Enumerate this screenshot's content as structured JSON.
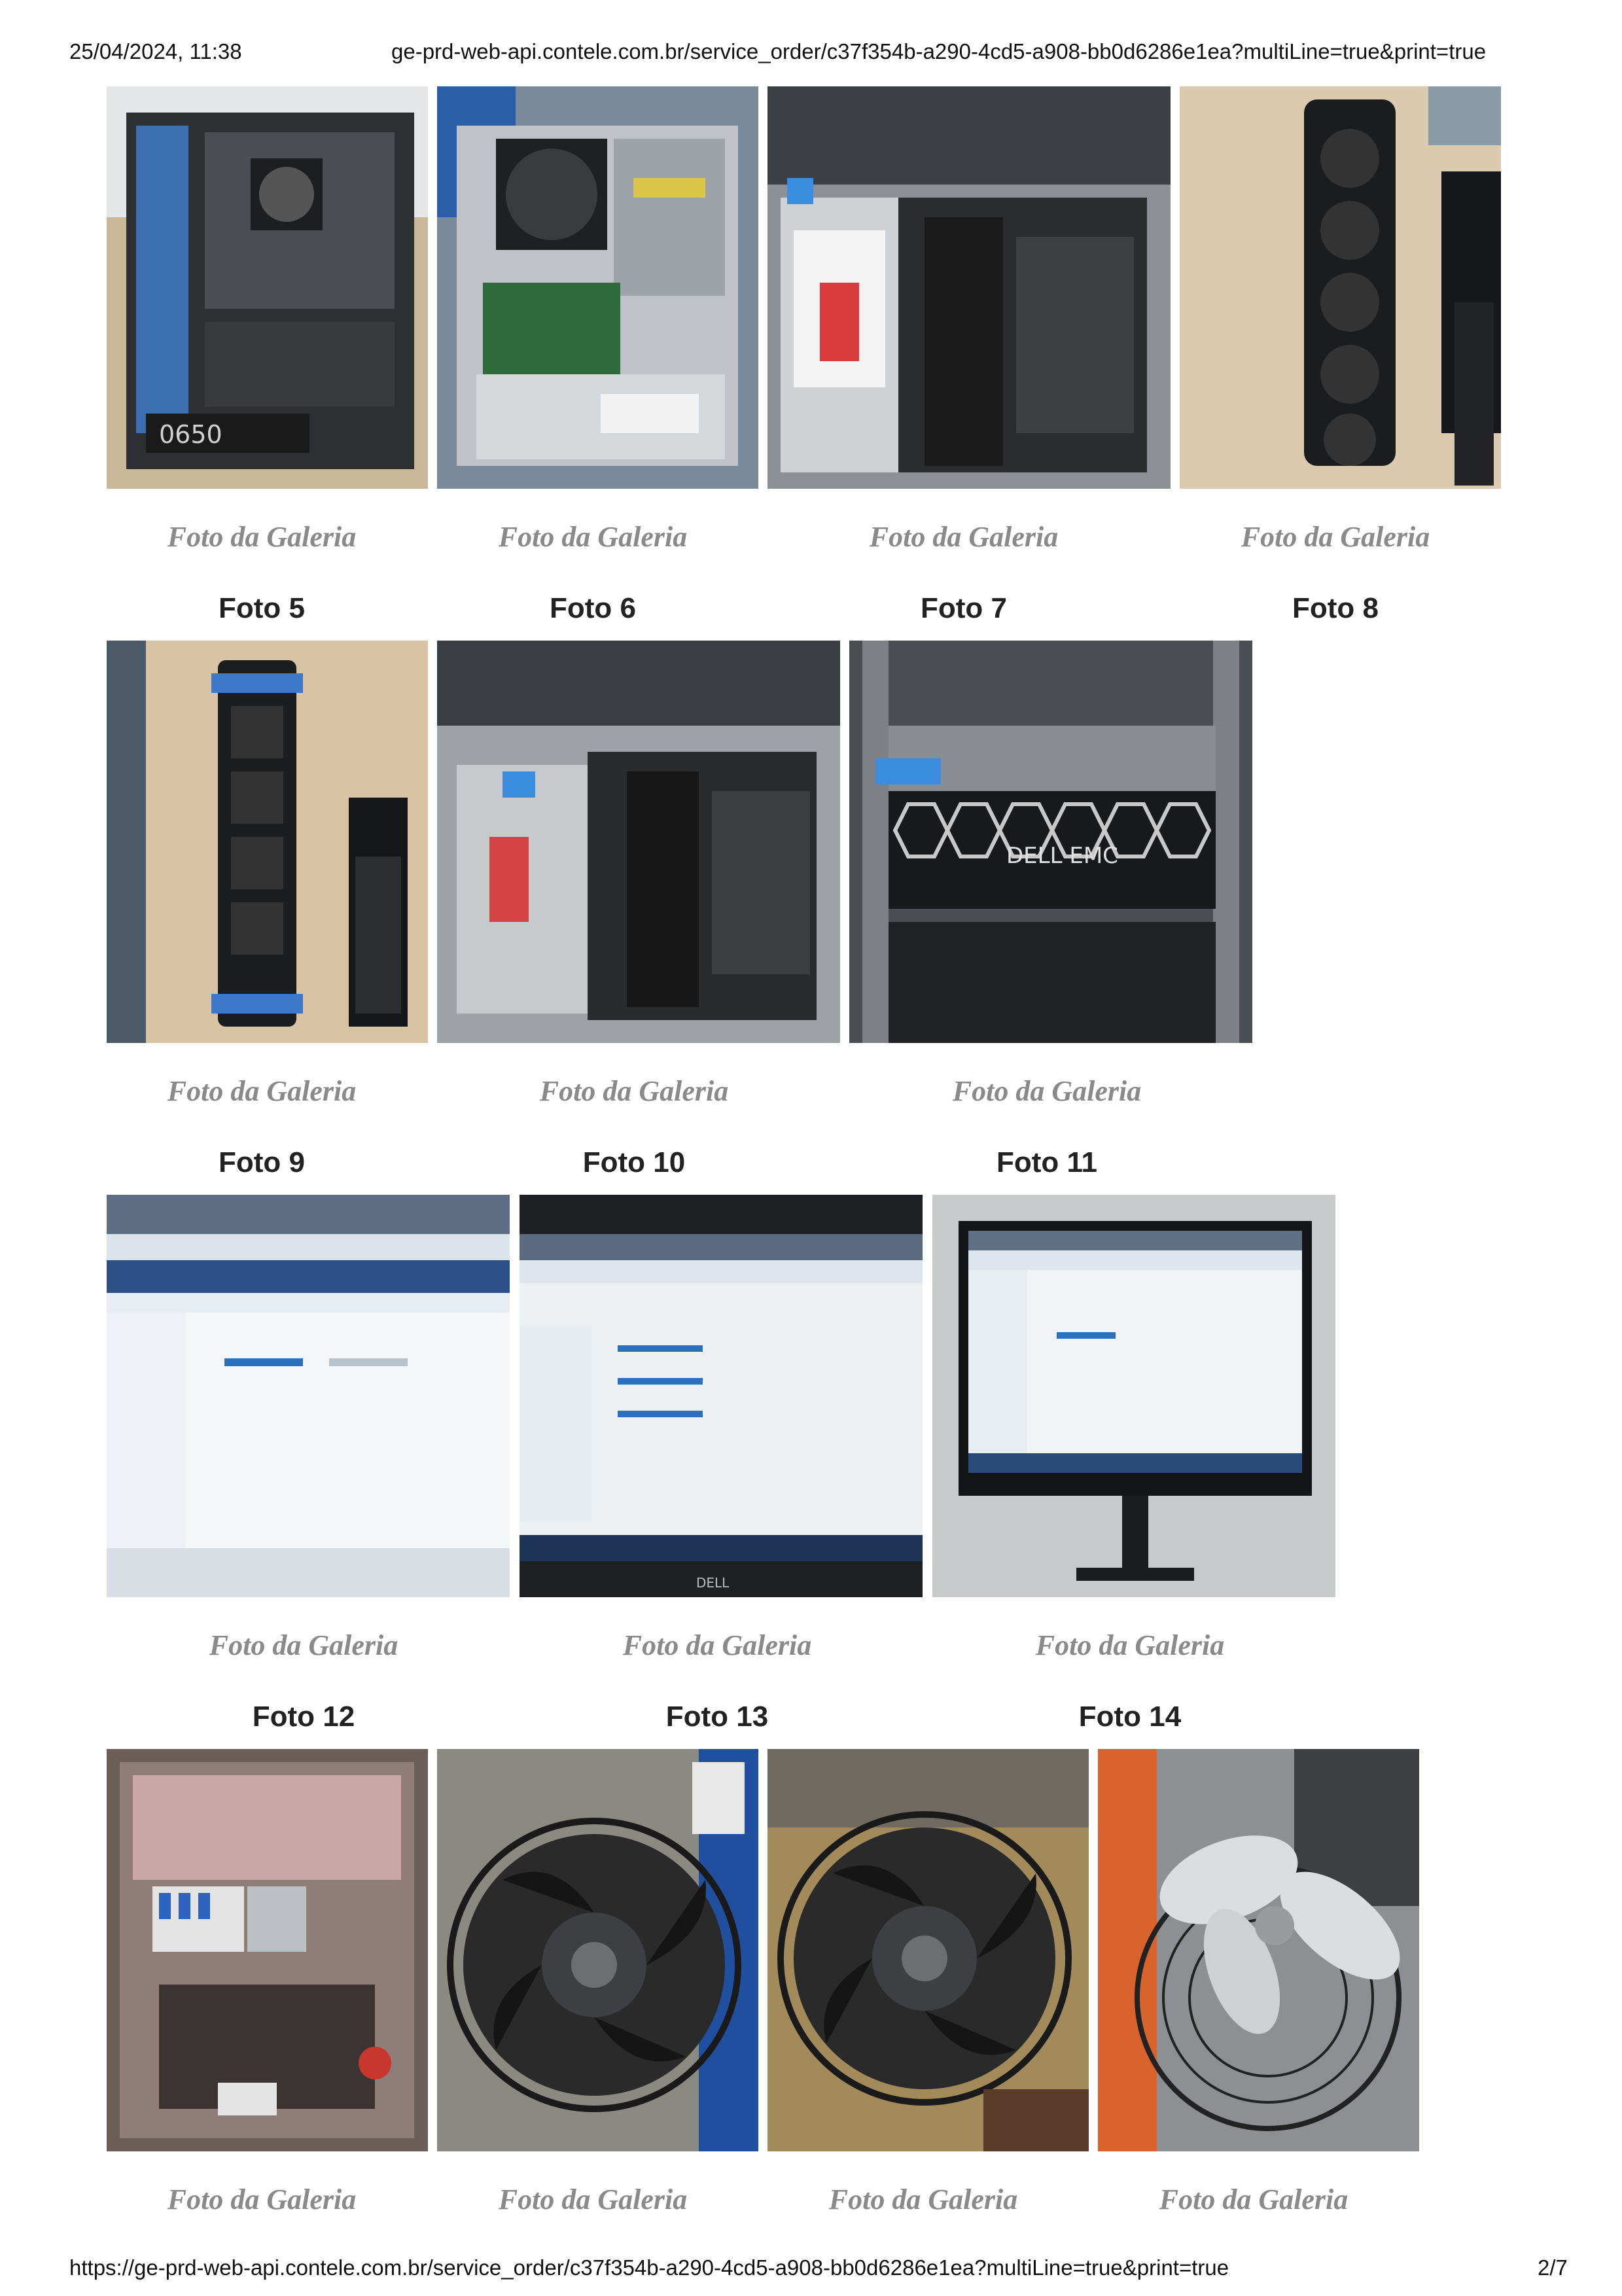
{
  "browser_header": {
    "datetime": "25/04/2024, 11:38",
    "url": "ge-prd-web-api.contele.com.br/service_order/c37f354b-a290-4cd5-a908-bb0d6286e1ea?multiLine=true&print=true"
  },
  "browser_footer": {
    "url": "https://ge-prd-web-api.contele.com.br/service_order/c37f354b-a290-4cd5-a908-bb0d6286e1ea?multiLine=true&print=true",
    "page": "2/7"
  },
  "gallery": {
    "row1": {
      "captions": [
        "Foto da Galeria",
        "Foto da Galeria",
        "Foto da Galeria",
        "Foto da Galeria"
      ],
      "next_labels": [
        "Foto 5",
        "Foto 6",
        "Foto 7",
        "Foto 8"
      ],
      "photos": [
        "desktop tower open case",
        "desktop pc open chassis",
        "rack server top cover open",
        "server fan modules on desk"
      ]
    },
    "row2": {
      "captions": [
        "Foto da Galeria",
        "Foto da Galeria",
        "Foto da Galeria"
      ],
      "next_labels": [
        "Foto 9",
        "Foto 10",
        "Foto 11"
      ],
      "photos": [
        "server fan assembly",
        "rack server internals",
        "dell emc server front bezel"
      ]
    },
    "row3": {
      "captions": [
        "Foto da Galeria",
        "Foto da Galeria",
        "Foto da Galeria"
      ],
      "next_labels": [
        "Foto 12",
        "Foto 13",
        "Foto 14"
      ],
      "photos": [
        "vmware workstation screen",
        "vmware computer drives",
        "dell monitor windows explorer"
      ]
    },
    "row4": {
      "captions": [
        "Foto da Galeria",
        "Foto da Galeria",
        "Foto da Galeria",
        "Foto da Galeria"
      ],
      "photos": [
        "electrical panel breakers",
        "axial fan held in hands",
        "axial fan motor",
        "fan with aluminium blades"
      ]
    }
  },
  "colors": {
    "caption": "#8a8a8a",
    "label": "#222222"
  }
}
